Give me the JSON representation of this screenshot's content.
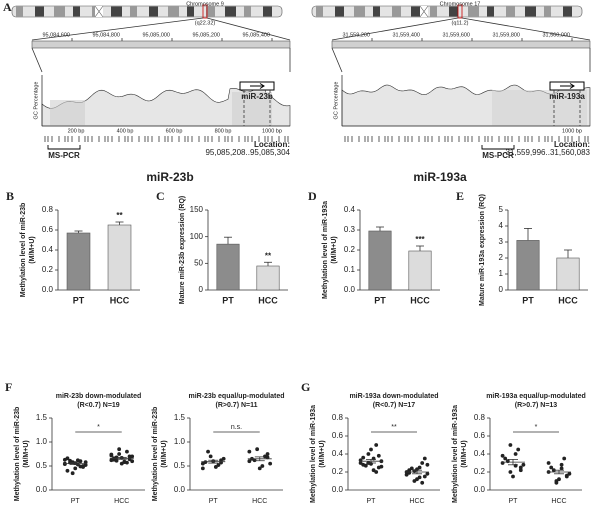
{
  "headers": [
    "miR-23b",
    "miR-193a"
  ],
  "panel_a": {
    "panel": "A",
    "loci": [
      {
        "chromosome": "Chromosome 9",
        "band": "(q22.32)",
        "coords": [
          "95,084,600",
          "95,084,800",
          "95,085,000",
          "95,085,200",
          "95,085,400"
        ],
        "axis_label": "GC Percentage",
        "bp_labels": [
          "200 bp",
          "400 bp",
          "600 bp",
          "800 bp",
          "1000 bp"
        ],
        "mirna": "miR-23b",
        "primer": "MS-PCR",
        "location_label": "Location:",
        "location": "95,085,208..95,085,304"
      },
      {
        "chromosome": "Chromosome 17",
        "band": "(q11.2)",
        "coords": [
          "31,559,200",
          "31,559,400",
          "31,559,600",
          "31,559,800",
          "31,560,000"
        ],
        "axis_label": "GC Percentage",
        "bp_labels": [
          "1000 bp"
        ],
        "mirna": "miR-193a",
        "primer": "MS-PCR",
        "location_label": "Location:",
        "location": "31,559,996..31,560,083"
      }
    ]
  },
  "chart_data": [
    {
      "type": "bar",
      "panel": "B",
      "ylabel": [
        "Methylation level of miR-23b",
        "(M/M+U)"
      ],
      "categories": [
        "PT",
        "HCC"
      ],
      "values": [
        0.57,
        0.65
      ],
      "errors": [
        0.02,
        0.03
      ],
      "colors": [
        "#8c8c8c",
        "#dcdcdc"
      ],
      "ylim": [
        0,
        0.8
      ],
      "yticks": [
        {
          "value": 0,
          "label": "0.0"
        },
        {
          "value": 0.2,
          "label": "0.2"
        },
        {
          "value": 0.4,
          "label": "0.4"
        },
        {
          "value": 0.6,
          "label": "0.6"
        },
        {
          "value": 0.8,
          "label": "0.8"
        }
      ],
      "annotation": "**"
    },
    {
      "type": "bar",
      "panel": "C",
      "ylabel": [
        "Mature miR-23b expression (RQ)"
      ],
      "categories": [
        "PT",
        "HCC"
      ],
      "values": [
        86,
        45
      ],
      "errors": [
        13,
        7
      ],
      "colors": [
        "#8c8c8c",
        "#dcdcdc"
      ],
      "ylim": [
        0,
        150
      ],
      "yticks": [
        0,
        50,
        100,
        150
      ],
      "annotation": "**"
    },
    {
      "type": "bar",
      "panel": "D",
      "ylabel": [
        "Methylation level of miR-193a",
        "(M/M+U)"
      ],
      "categories": [
        "PT",
        "HCC"
      ],
      "values": [
        0.295,
        0.195
      ],
      "errors": [
        0.02,
        0.025
      ],
      "colors": [
        "#8c8c8c",
        "#dcdcdc"
      ],
      "ylim": [
        0,
        0.4
      ],
      "yticks": [
        {
          "value": 0,
          "label": "0.0"
        },
        {
          "value": 0.1,
          "label": "0.1"
        },
        {
          "value": 0.2,
          "label": "0.2"
        },
        {
          "value": 0.3,
          "label": "0.3"
        },
        {
          "value": 0.4,
          "label": "0.4"
        }
      ],
      "annotation": "***"
    },
    {
      "type": "bar",
      "panel": "E",
      "ylabel": [
        "Mature miR-193a expression (RQ)"
      ],
      "categories": [
        "PT",
        "HCC"
      ],
      "values": [
        3.1,
        2.0
      ],
      "errors": [
        0.75,
        0.5
      ],
      "colors": [
        "#8c8c8c",
        "#dcdcdc"
      ],
      "ylim": [
        0,
        5
      ],
      "yticks": [
        0,
        1,
        2,
        3,
        4,
        5
      ]
    },
    {
      "type": "dot",
      "panel": "F",
      "title": [
        "miR-23b down-modulated",
        "(R<0.7) N=19"
      ],
      "ylabel": [
        "Methylation level of miR-23b",
        "(M/M+U)"
      ],
      "categories": [
        "PT",
        "HCC"
      ],
      "values": [
        [
          0.55,
          0.48,
          0.62,
          0.58,
          0.4,
          0.52,
          0.6,
          0.45,
          0.57,
          0.63,
          0.5,
          0.53,
          0.35,
          0.66,
          0.58,
          0.49,
          0.56,
          0.61,
          0.54
        ],
        [
          0.62,
          0.7,
          0.58,
          0.75,
          0.66,
          0.6,
          0.8,
          0.55,
          0.68,
          0.72,
          0.64,
          0.59,
          0.85,
          0.63,
          0.7,
          0.57,
          0.67,
          0.61,
          0.74
        ]
      ],
      "means": [
        0.55,
        0.66
      ],
      "errors": [
        0.02,
        0.02
      ],
      "ylim": [
        0,
        1.5
      ],
      "yticks": [
        {
          "value": 0,
          "label": "0.0"
        },
        {
          "value": 0.5,
          "label": "0.5"
        },
        {
          "value": 1,
          "label": "1.0"
        },
        {
          "value": 1.5,
          "label": "1.5"
        }
      ],
      "annotation": "*"
    },
    {
      "type": "dot",
      "title": [
        "miR-23b equal/up-modulated",
        "(R>0.7) N=11"
      ],
      "ylabel": [
        "Methylation level of miR-23b",
        "(M/M+U)"
      ],
      "categories": [
        "PT",
        "HCC"
      ],
      "values": [
        [
          0.55,
          0.62,
          0.48,
          0.7,
          0.58,
          0.65,
          0.52,
          0.6,
          0.8,
          0.45,
          0.57
        ],
        [
          0.6,
          0.75,
          0.5,
          0.85,
          0.65,
          0.55,
          0.7,
          0.45,
          0.62,
          0.8,
          0.68
        ]
      ],
      "means": [
        0.59,
        0.65
      ],
      "errors": [
        0.03,
        0.04
      ],
      "ylim": [
        0,
        1.5
      ],
      "yticks": [
        {
          "value": 0,
          "label": "0.0"
        },
        {
          "value": 0.5,
          "label": "0.5"
        },
        {
          "value": 1,
          "label": "1.0"
        },
        {
          "value": 1.5,
          "label": "1.5"
        }
      ],
      "annotation": "n.s."
    },
    {
      "type": "dot",
      "panel": "G",
      "title": [
        "miR-193a down-modulated",
        "(R<0.7) N=17"
      ],
      "ylabel": [
        "Methylation level of miR-193a",
        "(M/M+U)"
      ],
      "categories": [
        "PT",
        "HCC"
      ],
      "values": [
        [
          0.3,
          0.25,
          0.35,
          0.4,
          0.28,
          0.32,
          0.2,
          0.45,
          0.27,
          0.33,
          0.38,
          0.22,
          0.3,
          0.36,
          0.26,
          0.5,
          0.29
        ],
        [
          0.2,
          0.15,
          0.25,
          0.1,
          0.22,
          0.18,
          0.3,
          0.12,
          0.24,
          0.17,
          0.35,
          0.14,
          0.21,
          0.19,
          0.28,
          0.08,
          0.23
        ]
      ],
      "means": [
        0.32,
        0.2
      ],
      "errors": [
        0.02,
        0.02
      ],
      "ylim": [
        0,
        0.8
      ],
      "yticks": [
        {
          "value": 0,
          "label": "0.0"
        },
        {
          "value": 0.2,
          "label": "0.2"
        },
        {
          "value": 0.4,
          "label": "0.4"
        },
        {
          "value": 0.6,
          "label": "0.6"
        },
        {
          "value": 0.8,
          "label": "0.8"
        }
      ],
      "annotation": "**"
    },
    {
      "type": "dot",
      "title": [
        "miR-193a equal/up-modulated",
        "(R>0.7) N=13"
      ],
      "ylabel": [
        "Methylation level of miR-193a",
        "(M/M+U)"
      ],
      "categories": [
        "PT",
        "HCC"
      ],
      "values": [
        [
          0.3,
          0.25,
          0.4,
          0.2,
          0.35,
          0.28,
          0.45,
          0.15,
          0.32,
          0.38,
          0.22,
          0.27,
          0.5
        ],
        [
          0.2,
          0.15,
          0.28,
          0.1,
          0.25,
          0.18,
          0.35,
          0.12,
          0.22,
          0.3,
          0.16,
          0.24,
          0.08
        ]
      ],
      "means": [
        0.31,
        0.2
      ],
      "errors": [
        0.03,
        0.02
      ],
      "ylim": [
        0,
        0.8
      ],
      "yticks": [
        {
          "value": 0,
          "label": "0.0"
        },
        {
          "value": 0.2,
          "label": "0.2"
        },
        {
          "value": 0.4,
          "label": "0.4"
        },
        {
          "value": 0.6,
          "label": "0.6"
        },
        {
          "value": 0.8,
          "label": "0.8"
        }
      ],
      "annotation": "*"
    }
  ]
}
